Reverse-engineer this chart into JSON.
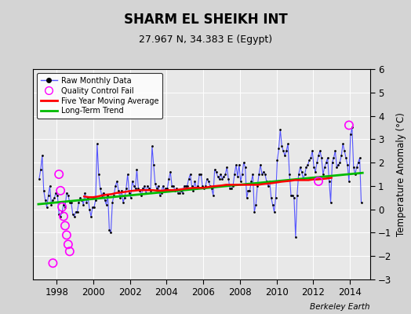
{
  "title": "SHARM EL SHEIKH INT",
  "subtitle": "27.967 N, 34.383 E (Egypt)",
  "ylabel": "Temperature Anomaly (°C)",
  "attribution": "Berkeley Earth",
  "ylim": [
    -3,
    6
  ],
  "xlim": [
    1996.7,
    2015.1
  ],
  "yticks": [
    -3,
    -2,
    -1,
    0,
    1,
    2,
    3,
    4,
    5,
    6
  ],
  "xticks": [
    1998,
    2000,
    2002,
    2004,
    2006,
    2008,
    2010,
    2012,
    2014
  ],
  "fig_bg_color": "#d4d4d4",
  "ax_bg_color": "#e8e8e8",
  "raw_color": "#5555ff",
  "ma_color": "#ff0000",
  "trend_color": "#00bb00",
  "qc_color": "#ff00ff",
  "raw_x": [
    1997.042,
    1997.125,
    1997.208,
    1997.292,
    1997.375,
    1997.458,
    1997.542,
    1997.625,
    1997.708,
    1997.792,
    1997.875,
    1997.958,
    1998.042,
    1998.125,
    1998.208,
    1998.292,
    1998.375,
    1998.458,
    1998.542,
    1998.625,
    1998.708,
    1998.792,
    1998.875,
    1998.958,
    1999.042,
    1999.125,
    1999.208,
    1999.292,
    1999.375,
    1999.458,
    1999.542,
    1999.625,
    1999.708,
    1999.792,
    1999.875,
    1999.958,
    2000.042,
    2000.125,
    2000.208,
    2000.292,
    2000.375,
    2000.458,
    2000.542,
    2000.625,
    2000.708,
    2000.792,
    2000.875,
    2000.958,
    2001.042,
    2001.125,
    2001.208,
    2001.292,
    2001.375,
    2001.458,
    2001.542,
    2001.625,
    2001.708,
    2001.792,
    2001.875,
    2001.958,
    2002.042,
    2002.125,
    2002.208,
    2002.292,
    2002.375,
    2002.458,
    2002.542,
    2002.625,
    2002.708,
    2002.792,
    2002.875,
    2002.958,
    2003.042,
    2003.125,
    2003.208,
    2003.292,
    2003.375,
    2003.458,
    2003.542,
    2003.625,
    2003.708,
    2003.792,
    2003.875,
    2003.958,
    2004.042,
    2004.125,
    2004.208,
    2004.292,
    2004.375,
    2004.458,
    2004.542,
    2004.625,
    2004.708,
    2004.792,
    2004.875,
    2004.958,
    2005.042,
    2005.125,
    2005.208,
    2005.292,
    2005.375,
    2005.458,
    2005.542,
    2005.625,
    2005.708,
    2005.792,
    2005.875,
    2005.958,
    2006.042,
    2006.125,
    2006.208,
    2006.292,
    2006.375,
    2006.458,
    2006.542,
    2006.625,
    2006.708,
    2006.792,
    2006.875,
    2006.958,
    2007.042,
    2007.125,
    2007.208,
    2007.292,
    2007.375,
    2007.458,
    2007.542,
    2007.625,
    2007.708,
    2007.792,
    2007.875,
    2007.958,
    2008.042,
    2008.125,
    2008.208,
    2008.292,
    2008.375,
    2008.458,
    2008.542,
    2008.625,
    2008.708,
    2008.792,
    2008.875,
    2008.958,
    2009.042,
    2009.125,
    2009.208,
    2009.292,
    2009.375,
    2009.458,
    2009.542,
    2009.625,
    2009.708,
    2009.792,
    2009.875,
    2009.958,
    2010.042,
    2010.125,
    2010.208,
    2010.292,
    2010.375,
    2010.458,
    2010.542,
    2010.625,
    2010.708,
    2010.792,
    2010.875,
    2010.958,
    2011.042,
    2011.125,
    2011.208,
    2011.292,
    2011.375,
    2011.458,
    2011.542,
    2011.625,
    2011.708,
    2011.792,
    2011.875,
    2011.958,
    2012.042,
    2012.125,
    2012.208,
    2012.292,
    2012.375,
    2012.458,
    2012.542,
    2012.625,
    2012.708,
    2012.792,
    2012.875,
    2012.958,
    2013.042,
    2013.125,
    2013.208,
    2013.292,
    2013.375,
    2013.458,
    2013.542,
    2013.625,
    2013.708,
    2013.792,
    2013.875,
    2013.958,
    2014.042,
    2014.125,
    2014.208,
    2014.292,
    2014.375,
    2014.458,
    2014.542,
    2014.625
  ],
  "raw_y": [
    1.3,
    1.7,
    2.3,
    0.8,
    0.4,
    0.1,
    0.6,
    1.0,
    0.2,
    0.4,
    0.5,
    0.7,
    0.6,
    -0.2,
    -0.3,
    -0.1,
    0.2,
    0.1,
    0.7,
    0.6,
    0.3,
    0.3,
    -0.2,
    -0.3,
    -0.1,
    -0.1,
    0.3,
    0.5,
    0.4,
    0.2,
    0.7,
    0.3,
    0.5,
    0.0,
    -0.3,
    0.1,
    0.1,
    0.4,
    2.8,
    1.5,
    0.9,
    0.6,
    0.7,
    0.4,
    0.2,
    0.6,
    -0.9,
    -1.0,
    0.3,
    0.6,
    1.0,
    1.2,
    0.8,
    0.5,
    0.8,
    0.3,
    0.5,
    0.9,
    1.5,
    0.7,
    0.5,
    1.2,
    1.0,
    0.9,
    1.7,
    0.9,
    0.8,
    0.6,
    0.9,
    1.0,
    0.7,
    1.0,
    0.9,
    0.8,
    2.7,
    1.9,
    1.1,
    0.9,
    1.0,
    0.6,
    0.7,
    1.0,
    0.8,
    0.9,
    0.9,
    1.3,
    1.6,
    1.0,
    1.0,
    0.8,
    0.9,
    0.7,
    0.7,
    0.8,
    0.7,
    1.0,
    1.0,
    1.0,
    1.3,
    1.5,
    1.0,
    0.8,
    1.2,
    0.9,
    1.0,
    1.5,
    1.5,
    1.0,
    0.9,
    1.0,
    1.3,
    1.2,
    1.0,
    0.9,
    0.6,
    1.7,
    1.6,
    1.4,
    1.3,
    1.5,
    1.3,
    1.4,
    1.5,
    1.8,
    1.3,
    0.9,
    0.9,
    1.0,
    1.5,
    1.9,
    1.4,
    1.9,
    1.2,
    1.5,
    2.0,
    1.8,
    0.5,
    0.8,
    0.8,
    1.2,
    1.5,
    -0.1,
    0.2,
    1.0,
    1.5,
    1.9,
    1.5,
    1.6,
    1.5,
    1.2,
    1.0,
    1.2,
    0.5,
    0.2,
    -0.1,
    0.5,
    2.1,
    2.6,
    3.4,
    2.7,
    2.5,
    2.3,
    2.5,
    2.8,
    1.5,
    0.6,
    0.6,
    0.5,
    -1.2,
    0.6,
    1.5,
    1.8,
    1.6,
    1.3,
    1.5,
    1.8,
    1.9,
    2.1,
    2.2,
    2.5,
    1.8,
    1.6,
    2.0,
    2.3,
    2.5,
    2.2,
    1.5,
    1.8,
    2.0,
    2.2,
    1.2,
    0.3,
    2.0,
    2.2,
    2.5,
    1.8,
    1.9,
    2.0,
    2.3,
    2.8,
    2.5,
    2.2,
    1.9,
    1.2,
    3.2,
    3.5,
    1.8,
    1.5,
    1.8,
    2.0,
    2.2,
    0.3
  ],
  "qc_x": [
    1997.792,
    1998.125,
    1998.208,
    1998.292,
    1998.375,
    1998.458,
    1998.542,
    1998.625,
    1998.708,
    2012.292,
    2013.958
  ],
  "qc_y": [
    -2.3,
    1.5,
    0.8,
    0.1,
    -0.3,
    -0.7,
    -1.1,
    -1.5,
    -1.8,
    1.2,
    3.6
  ],
  "ma_x": [
    1999.5,
    1999.75,
    2000.0,
    2000.25,
    2000.5,
    2000.75,
    2001.0,
    2001.25,
    2001.5,
    2001.75,
    2002.0,
    2002.25,
    2002.5,
    2002.75,
    2003.0,
    2003.25,
    2003.5,
    2003.75,
    2004.0,
    2004.25,
    2004.5,
    2004.75,
    2005.0,
    2005.25,
    2005.5,
    2005.75,
    2006.0,
    2006.25,
    2006.5,
    2006.75,
    2007.0,
    2007.25,
    2007.5,
    2007.75,
    2008.0,
    2008.25,
    2008.5,
    2008.75,
    2009.0,
    2009.25,
    2009.5,
    2009.75,
    2010.0,
    2010.25,
    2010.5,
    2010.75,
    2011.0,
    2011.25,
    2011.5,
    2011.75,
    2012.0,
    2012.25,
    2012.5,
    2012.75,
    2013.0
  ],
  "ma_y": [
    0.55,
    0.52,
    0.52,
    0.55,
    0.6,
    0.63,
    0.65,
    0.7,
    0.72,
    0.75,
    0.78,
    0.8,
    0.82,
    0.82,
    0.82,
    0.82,
    0.8,
    0.8,
    0.82,
    0.82,
    0.83,
    0.85,
    0.88,
    0.9,
    0.92,
    0.92,
    0.92,
    0.95,
    0.98,
    1.0,
    1.02,
    1.05,
    1.05,
    1.05,
    1.05,
    1.05,
    1.05,
    1.05,
    1.05,
    1.08,
    1.1,
    1.12,
    1.15,
    1.18,
    1.2,
    1.22,
    1.25,
    1.25,
    1.25,
    1.25,
    1.28,
    1.28,
    1.3,
    1.32,
    1.35
  ],
  "trend_x": [
    1997.0,
    2014.7
  ],
  "trend_y": [
    0.22,
    1.56
  ]
}
